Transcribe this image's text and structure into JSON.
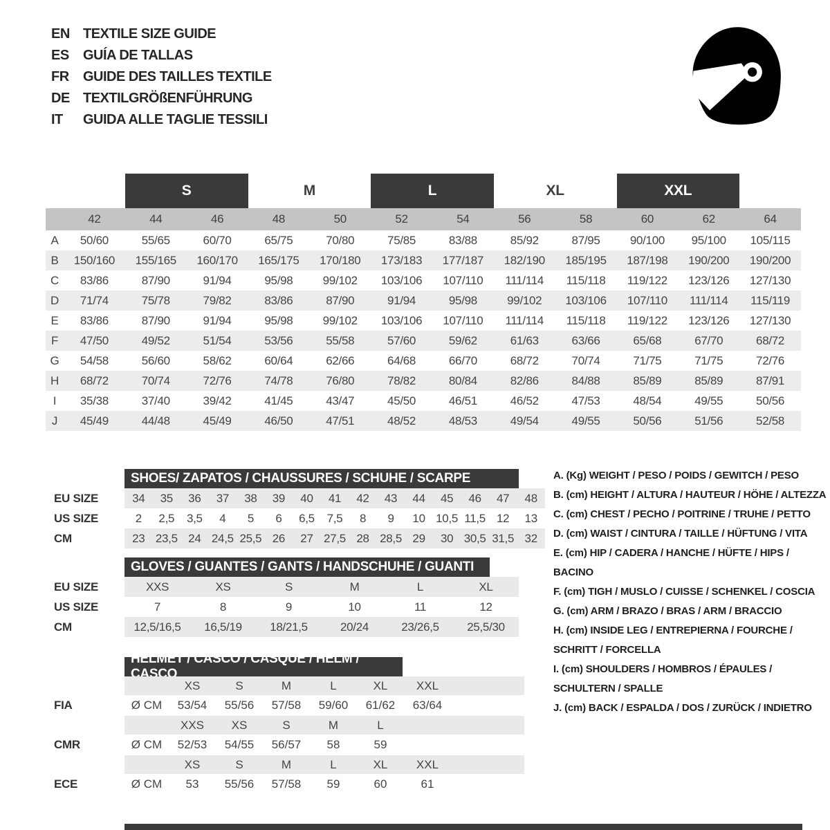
{
  "colors": {
    "dark_bar": "#3a3a3a",
    "size_band": "#c4c4c4",
    "row_stripe": "#ececec",
    "sub_stripe": "#e9e9e9",
    "text": "#474747"
  },
  "header": {
    "entries": [
      {
        "lang": "EN",
        "title": "TEXTILE SIZE GUIDE"
      },
      {
        "lang": "ES",
        "title": "GUÍA DE TALLAS"
      },
      {
        "lang": "FR",
        "title": "GUIDE DES TAILLES TEXTILE"
      },
      {
        "lang": "DE",
        "title": "TEXTILGRÖßENFÜHRUNG"
      },
      {
        "lang": "IT",
        "title": "GUIDA ALLE TAGLIE TESSILI"
      }
    ],
    "icon": "racing-helmet-icon"
  },
  "main_table": {
    "size_headers": [
      {
        "label": "S",
        "boxed": true
      },
      {
        "label": "M",
        "boxed": false
      },
      {
        "label": "L",
        "boxed": true
      },
      {
        "label": "XL",
        "boxed": false
      },
      {
        "label": "XXL",
        "boxed": true
      }
    ],
    "numeric_sizes": [
      "42",
      "44",
      "46",
      "48",
      "50",
      "52",
      "54",
      "56",
      "58",
      "60",
      "62",
      "64"
    ],
    "rows": [
      {
        "letter": "A",
        "values": [
          "50/60",
          "55/65",
          "60/70",
          "65/75",
          "70/80",
          "75/85",
          "83/88",
          "85/92",
          "87/95",
          "90/100",
          "95/100",
          "105/115"
        ]
      },
      {
        "letter": "B",
        "values": [
          "150/160",
          "155/165",
          "160/170",
          "165/175",
          "170/180",
          "173/183",
          "177/187",
          "182/190",
          "185/195",
          "187/198",
          "190/200",
          "190/200"
        ]
      },
      {
        "letter": "C",
        "values": [
          "83/86",
          "87/90",
          "91/94",
          "95/98",
          "99/102",
          "103/106",
          "107/110",
          "111/114",
          "115/118",
          "119/122",
          "123/126",
          "127/130"
        ]
      },
      {
        "letter": "D",
        "values": [
          "71/74",
          "75/78",
          "79/82",
          "83/86",
          "87/90",
          "91/94",
          "95/98",
          "99/102",
          "103/106",
          "107/110",
          "111/114",
          "115/119"
        ]
      },
      {
        "letter": "E",
        "values": [
          "83/86",
          "87/90",
          "91/94",
          "95/98",
          "99/102",
          "103/106",
          "107/110",
          "111/114",
          "115/118",
          "119/122",
          "123/126",
          "127/130"
        ]
      },
      {
        "letter": "F",
        "values": [
          "47/50",
          "49/52",
          "51/54",
          "53/56",
          "55/58",
          "57/60",
          "59/62",
          "61/63",
          "63/66",
          "65/68",
          "67/70",
          "68/72"
        ]
      },
      {
        "letter": "G",
        "values": [
          "54/58",
          "56/60",
          "58/62",
          "60/64",
          "62/66",
          "64/68",
          "66/70",
          "68/72",
          "70/74",
          "71/75",
          "71/75",
          "72/76"
        ]
      },
      {
        "letter": "H",
        "values": [
          "68/72",
          "70/74",
          "72/76",
          "74/78",
          "76/80",
          "78/82",
          "80/84",
          "82/86",
          "84/88",
          "85/89",
          "85/89",
          "87/91"
        ]
      },
      {
        "letter": "I",
        "values": [
          "35/38",
          "37/40",
          "39/42",
          "41/45",
          "43/47",
          "45/50",
          "46/51",
          "46/52",
          "47/53",
          "48/54",
          "49/55",
          "50/56"
        ]
      },
      {
        "letter": "J",
        "values": [
          "45/49",
          "44/48",
          "45/49",
          "46/50",
          "47/51",
          "48/52",
          "48/53",
          "49/54",
          "49/55",
          "50/56",
          "51/56",
          "52/58"
        ]
      }
    ]
  },
  "shoes_table": {
    "title": "SHOES/ ZAPATOS / CHAUSSURES / SCHUHE / SCARPE",
    "rows": [
      {
        "label": "EU SIZE",
        "shaded": true,
        "values": [
          "34",
          "35",
          "36",
          "37",
          "38",
          "39",
          "40",
          "41",
          "42",
          "43",
          "44",
          "45",
          "46",
          "47",
          "48"
        ]
      },
      {
        "label": "US SIZE",
        "shaded": false,
        "values": [
          "2",
          "2,5",
          "3,5",
          "4",
          "5",
          "6",
          "6,5",
          "7,5",
          "8",
          "9",
          "10",
          "10,5",
          "11,5",
          "12",
          "13"
        ]
      },
      {
        "label": "CM",
        "shaded": true,
        "values": [
          "23",
          "23,5",
          "24",
          "24,5",
          "25,5",
          "26",
          "27",
          "27,5",
          "28",
          "28,5",
          "29",
          "30",
          "30,5",
          "31,5",
          "32"
        ]
      }
    ]
  },
  "gloves_table": {
    "title": "GLOVES / GUANTES / GANTS / HANDSCHUHE / GUANTI",
    "rows": [
      {
        "label": "EU SIZE",
        "shaded": true,
        "values": [
          "XXS",
          "XS",
          "S",
          "M",
          "L",
          "XL"
        ]
      },
      {
        "label": "US SIZE",
        "shaded": false,
        "values": [
          "7",
          "8",
          "9",
          "10",
          "11",
          "12"
        ]
      },
      {
        "label": "CM",
        "shaded": true,
        "values": [
          "12,5/16,5",
          "16,5/19",
          "18/21,5",
          "20/24",
          "23/26,5",
          "25,5/30"
        ]
      }
    ]
  },
  "helmet_table": {
    "title": "HELMET / CASCO / CASQUE / HELM / CASCO",
    "sections": [
      {
        "label": "FIA",
        "unit": "Ø CM",
        "sizes": [
          "XS",
          "S",
          "M",
          "L",
          "XL",
          "XXL"
        ],
        "values": [
          "53/54",
          "55/56",
          "57/58",
          "59/60",
          "61/62",
          "63/64"
        ]
      },
      {
        "label": "CMR",
        "unit": "Ø CM",
        "sizes": [
          "XXS",
          "XS",
          "S",
          "M",
          "L"
        ],
        "values": [
          "52/53",
          "54/55",
          "56/57",
          "58",
          "59"
        ]
      },
      {
        "label": "ECE",
        "unit": "Ø CM",
        "sizes": [
          "XS",
          "S",
          "M",
          "L",
          "XL",
          "XXL"
        ],
        "values": [
          "53",
          "55/56",
          "57/58",
          "59",
          "60",
          "61"
        ]
      }
    ]
  },
  "legend": {
    "items": [
      "A. (Kg) WEIGHT / PESO / POIDS / GEWITCH / PESO",
      "B. (cm) HEIGHT / ALTURA / HAUTEUR / HÖHE / ALTEZZA",
      "C. (cm) CHEST / PECHO / POITRINE / TRUHE / PETTO",
      "D. (cm) WAIST / CINTURA / TAILLE / HÜFTUNG / VITA",
      "E. (cm) HIP / CADERA / HANCHE / HÜFTE / HIPS / BACINO",
      "F. (cm) TIGH / MUSLO / CUISSE / SCHENKEL / COSCIA",
      "G. (cm) ARM / BRAZO / BRAS / ARM / BRACCIO",
      "H. (cm) INSIDE LEG / ENTREPIERNA / FOURCHE / SCHRITT / FORCELLA",
      "I. (cm) SHOULDERS / HOMBROS / ÉPAULES / SCHULTERN / SPALLE",
      "J. (cm) BACK / ESPALDA / DOS / ZURÜCK / INDIETRO"
    ]
  }
}
